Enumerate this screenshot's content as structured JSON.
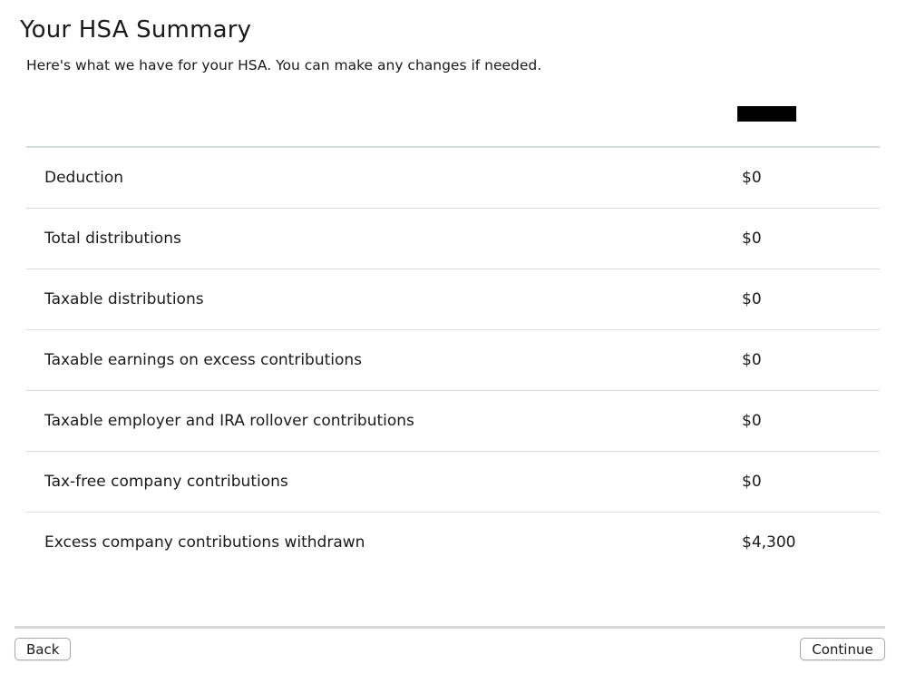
{
  "header": {
    "title": "Your HSA Summary",
    "subtitle": "Here's what we have for your HSA. You can make any changes if needed."
  },
  "summary": {
    "rows": [
      {
        "label": "Deduction",
        "value": "$0"
      },
      {
        "label": "Total distributions",
        "value": "$0"
      },
      {
        "label": "Taxable distributions",
        "value": "$0"
      },
      {
        "label": "Taxable earnings on excess contributions",
        "value": "$0"
      },
      {
        "label": "Taxable employer and IRA rollover contributions",
        "value": "$0"
      },
      {
        "label": "Tax-free company contributions",
        "value": "$0"
      },
      {
        "label": "Excess company contributions withdrawn",
        "value": "$4,300"
      }
    ]
  },
  "footer": {
    "back_label": "Back",
    "continue_label": "Continue"
  }
}
